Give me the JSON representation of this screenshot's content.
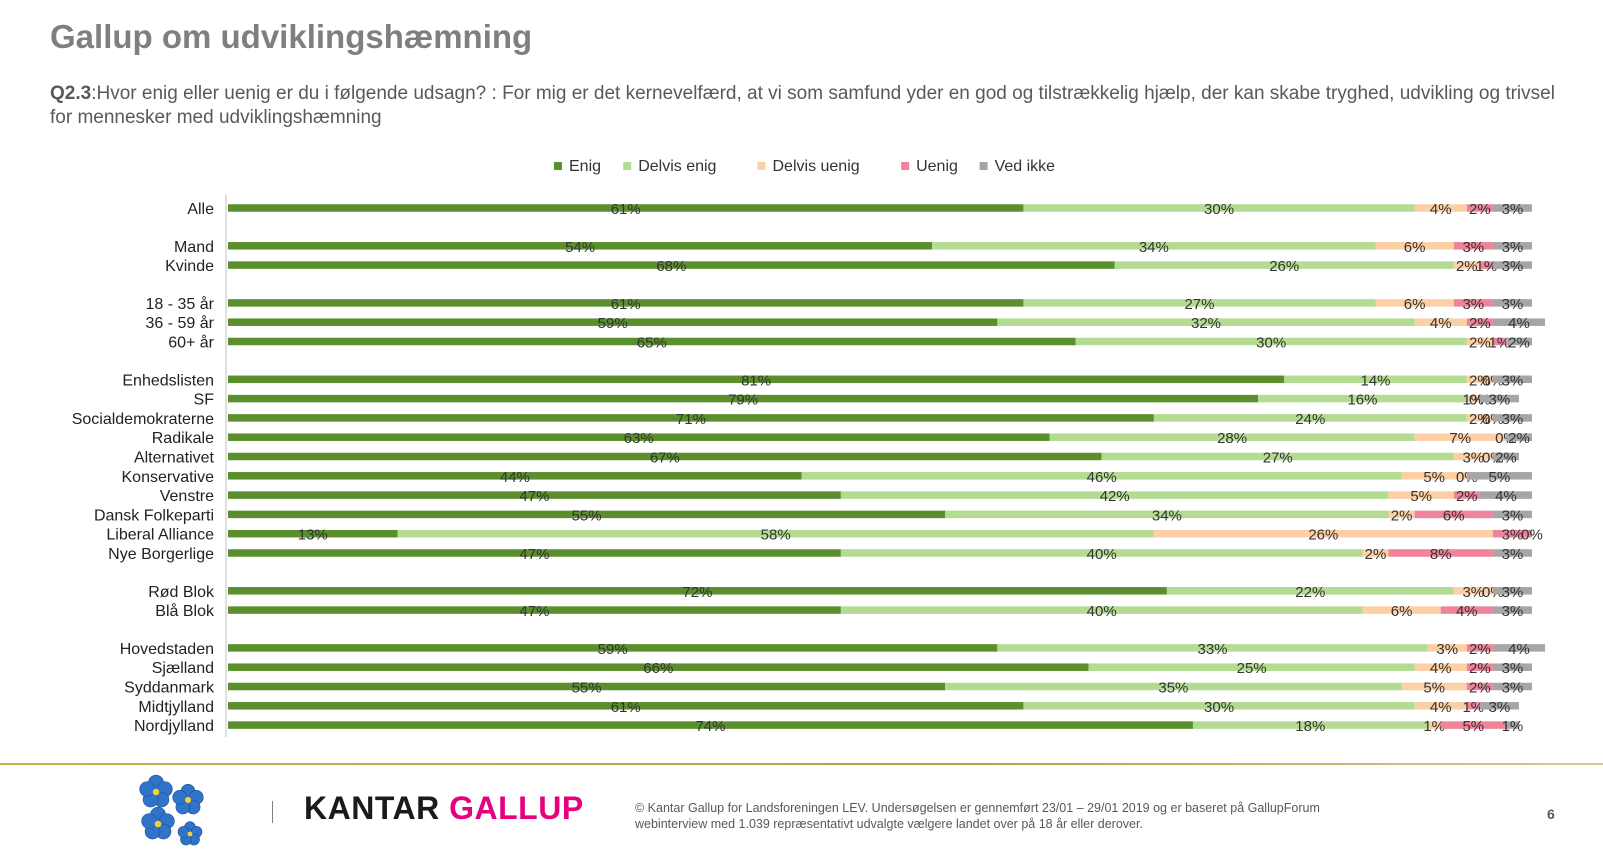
{
  "page": {
    "title": "Gallup om udviklingshæmning",
    "question_id": "Q2.3",
    "question_text": ":Hvor enig eller uenig er du i følgende udsagn? : For mig er det kernevelfærd, at vi som samfund yder en god og tilstrækkelig hjælp, der kan skabe tryghed, udvikling og trivsel for mennesker med udviklingshæmning",
    "brand_part1": "KANTAR ",
    "brand_part2": "GALLUP",
    "footnote": "© Kantar Gallup for Landsforeningen LEV. Undersøgelsen er gennemført 23/01 – 29/01 2019 og er baseret på GallupForum webinterview med 1.039 repræsentativt udvalgte vælgere landet over på 18 år eller derover.",
    "page_number": "6"
  },
  "colors": {
    "Enig": "#5b8f2e",
    "Delvis enig": "#b3dc92",
    "Delvis uenig": "#fcd0a4",
    "Uenig": "#f0839a",
    "Ved ikke": "#a6a6a6",
    "title": "#7f7f7f",
    "brand_pink": "#e6007e",
    "flower_blue": "#2f74c9"
  },
  "chart_data": {
    "type": "bar",
    "orientation": "horizontal-stacked-100",
    "legend_position": "top",
    "grid": false,
    "xlim": [
      0,
      100
    ],
    "series_names": [
      "Enig",
      "Delvis enig",
      "Delvis uenig",
      "Uenig",
      "Ved ikke"
    ],
    "groups": [
      {
        "rows": [
          {
            "label": "Alle",
            "values": [
              61,
              30,
              4,
              2,
              3
            ],
            "labels": [
              "61%",
              "30%",
              "4%",
              "2%",
              "3%"
            ]
          }
        ]
      },
      {
        "rows": [
          {
            "label": "Mand",
            "values": [
              54,
              34,
              6,
              3,
              3
            ],
            "labels": [
              "54%",
              "34%",
              "6%",
              "3%",
              "3%"
            ]
          },
          {
            "label": "Kvinde",
            "values": [
              68,
              26,
              2,
              1,
              3
            ],
            "labels": [
              "68%",
              "26%",
              "2%",
              "1%",
              "3%"
            ]
          }
        ]
      },
      {
        "rows": [
          {
            "label": "18 - 35 år",
            "values": [
              61,
              27,
              6,
              3,
              3
            ],
            "labels": [
              "61%",
              "27%",
              "6%",
              "3%",
              "3%"
            ]
          },
          {
            "label": "36 - 59 år",
            "values": [
              59,
              32,
              4,
              2,
              4
            ],
            "labels": [
              "59%",
              "32%",
              "4%",
              "2%",
              "4%"
            ]
          },
          {
            "label": "60+ år",
            "values": [
              65,
              30,
              2,
              1,
              2
            ],
            "labels": [
              "65%",
              "30%",
              "2%",
              "1%",
              "2%"
            ]
          }
        ]
      },
      {
        "rows": [
          {
            "label": "Enhedslisten",
            "values": [
              81,
              14,
              2,
              0,
              3
            ],
            "labels": [
              "81%",
              "14%",
              "2%",
              "0%",
              "3%"
            ]
          },
          {
            "label": "SF",
            "values": [
              79,
              16,
              1,
              0,
              3
            ],
            "labels": [
              "79%",
              "16%",
              "1%",
              "0%",
              "3%"
            ]
          },
          {
            "label": "Socialdemokraterne",
            "values": [
              71,
              24,
              2,
              0,
              3
            ],
            "labels": [
              "71%",
              "24%",
              "2%",
              "0%",
              "3%"
            ]
          },
          {
            "label": "Radikale",
            "values": [
              63,
              28,
              7,
              0,
              2
            ],
            "labels": [
              "63%",
              "28%",
              "7%",
              "0%",
              "2%"
            ]
          },
          {
            "label": "Alternativet",
            "values": [
              67,
              27,
              3,
              0,
              2
            ],
            "labels": [
              "67%",
              "27%",
              "3%",
              "0%",
              "2%"
            ]
          },
          {
            "label": "Konservative",
            "values": [
              44,
              46,
              5,
              0,
              5
            ],
            "labels": [
              "44%",
              "46%",
              "5%",
              "0%",
              "5%"
            ]
          },
          {
            "label": "Venstre",
            "values": [
              47,
              42,
              5,
              2,
              4
            ],
            "labels": [
              "47%",
              "42%",
              "5%",
              "2%",
              "4%"
            ]
          },
          {
            "label": "Dansk Folkeparti",
            "values": [
              55,
              34,
              2,
              6,
              3
            ],
            "labels": [
              "55%",
              "34%",
              "2%",
              "6%",
              "3%"
            ]
          },
          {
            "label": "Liberal Alliance",
            "values": [
              13,
              58,
              26,
              3,
              0
            ],
            "labels": [
              "13%",
              "58%",
              "26%",
              "3%",
              "0%"
            ]
          },
          {
            "label": "Nye Borgerlige",
            "values": [
              47,
              40,
              2,
              8,
              3
            ],
            "labels": [
              "47%",
              "40%",
              "2%",
              "8%",
              "3%"
            ]
          }
        ]
      },
      {
        "rows": [
          {
            "label": "Rød Blok",
            "values": [
              72,
              22,
              3,
              0,
              3
            ],
            "labels": [
              "72%",
              "22%",
              "3%",
              "0%",
              "3%"
            ]
          },
          {
            "label": "Blå Blok",
            "values": [
              47,
              40,
              6,
              4,
              3
            ],
            "labels": [
              "47%",
              "40%",
              "6%",
              "4%",
              "3%"
            ]
          }
        ]
      },
      {
        "rows": [
          {
            "label": "Hovedstaden",
            "values": [
              59,
              33,
              3,
              2,
              4
            ],
            "labels": [
              "59%",
              "33%",
              "3%",
              "2%",
              "4%"
            ]
          },
          {
            "label": "Sjælland",
            "values": [
              66,
              25,
              4,
              2,
              3
            ],
            "labels": [
              "66%",
              "25%",
              "4%",
              "2%",
              "3%"
            ]
          },
          {
            "label": "Syddanmark",
            "values": [
              55,
              35,
              5,
              2,
              3
            ],
            "labels": [
              "55%",
              "35%",
              "5%",
              "2%",
              "3%"
            ]
          },
          {
            "label": "Midtjylland",
            "values": [
              61,
              30,
              4,
              1,
              3
            ],
            "labels": [
              "61%",
              "30%",
              "4%",
              "1%",
              "3%"
            ]
          },
          {
            "label": "Nordjylland",
            "values": [
              74,
              18,
              1,
              5,
              1
            ],
            "labels": [
              "74%",
              "18%",
              "1%",
              "5%",
              "1%"
            ]
          }
        ]
      }
    ]
  }
}
